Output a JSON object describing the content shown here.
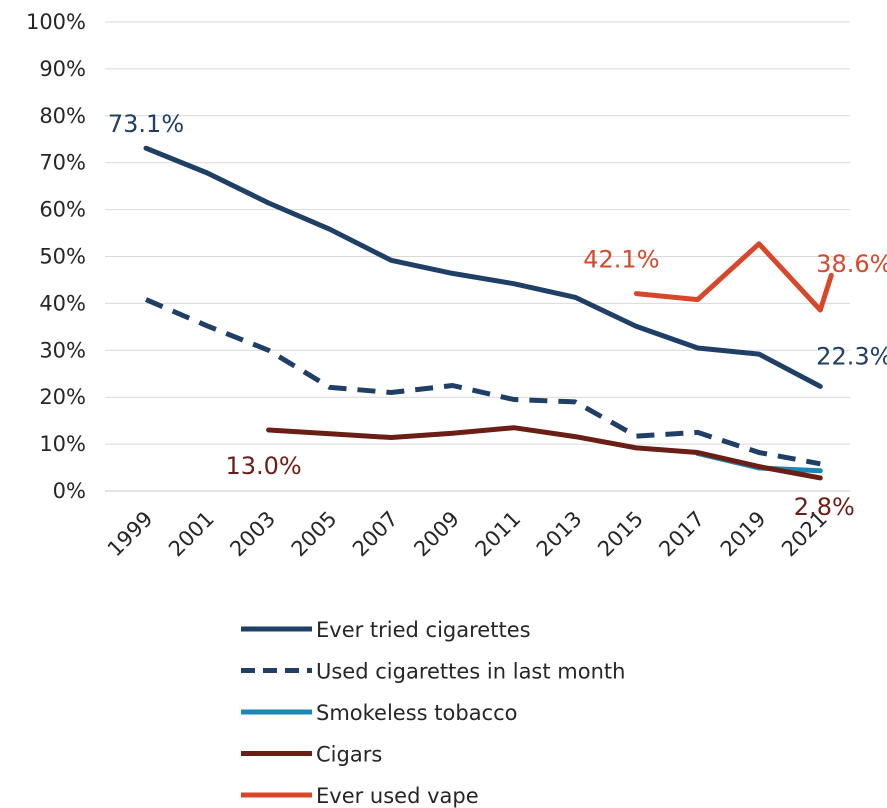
{
  "chart_data": {
    "type": "line",
    "title": "",
    "xlabel": "",
    "ylabel": "",
    "ylim": [
      0,
      100
    ],
    "y_ticks": [
      "0%",
      "10%",
      "20%",
      "30%",
      "40%",
      "50%",
      "60%",
      "70%",
      "80%",
      "90%",
      "100%"
    ],
    "y_tick_values": [
      0,
      10,
      20,
      30,
      40,
      50,
      60,
      70,
      80,
      90,
      100
    ],
    "x": [
      "1999",
      "2001",
      "2003",
      "2005",
      "2007",
      "2009",
      "2011",
      "2013",
      "2015",
      "2017",
      "2019",
      "2021"
    ],
    "grid": "horizontal",
    "legend_position": "bottom",
    "series": [
      {
        "name": "Ever tried cigarettes",
        "color": "#1F3F66",
        "style": "solid",
        "values": [
          73.1,
          67.8,
          61.4,
          55.8,
          49.2,
          46.4,
          44.2,
          41.3,
          35.1,
          30.5,
          29.2,
          22.3
        ]
      },
      {
        "name": "Used cigarettes in last month",
        "color": "#1F3F66",
        "style": "dashed",
        "values": [
          40.8,
          35.2,
          30.0,
          22.1,
          21.0,
          22.5,
          19.5,
          19.0,
          11.7,
          12.5,
          8.2,
          5.8
        ]
      },
      {
        "name": "Smokeless tobacco",
        "color": "#1A87B5",
        "style": "solid",
        "values": [
          null,
          null,
          null,
          null,
          null,
          null,
          null,
          null,
          null,
          8.0,
          4.9,
          4.3
        ]
      },
      {
        "name": "Cigars",
        "color": "#6B1E16",
        "style": "solid",
        "values": [
          null,
          null,
          13.0,
          12.2,
          11.4,
          12.3,
          13.5,
          11.6,
          9.2,
          8.2,
          5.2,
          2.8
        ]
      },
      {
        "name": "Ever used vape",
        "color": "#D9472B",
        "style": "solid",
        "values": [
          null,
          null,
          null,
          null,
          null,
          null,
          null,
          null,
          42.1,
          40.8,
          52.7,
          38.6
        ],
        "extra_segment_end": 46.0
      }
    ],
    "annotations": [
      {
        "text": "73.1%",
        "series": 0,
        "index": 0,
        "color": "#1F3F66"
      },
      {
        "text": "22.3%",
        "series": 0,
        "index": 11,
        "color": "#1F3F66"
      },
      {
        "text": "13.0%",
        "series": 3,
        "index": 2,
        "color": "#6B1E16"
      },
      {
        "text": "2.8%",
        "series": 3,
        "index": 11,
        "color": "#6B1E16"
      },
      {
        "text": "42.1%",
        "series": 4,
        "index": 8,
        "color": "#D9472B"
      },
      {
        "text": "38.6%",
        "series": 4,
        "index": 11,
        "color": "#D9472B"
      }
    ]
  }
}
